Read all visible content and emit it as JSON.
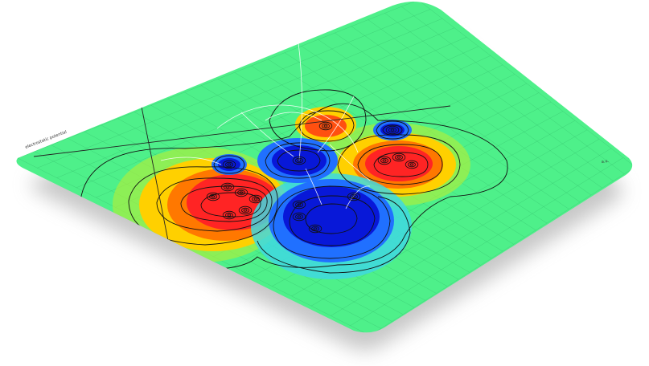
{
  "figure": {
    "side_label": "electrostatic potential",
    "corner_label": "a.u.",
    "background_color": "#ffffff",
    "card_color": "#4ef08a",
    "shadow_color": "#9a9a9a",
    "gridline_color": "#2aa860",
    "contour_color": "#111111",
    "fieldline_color": "#ffffff",
    "colormap": [
      "#0000d0",
      "#2060ff",
      "#00d8ff",
      "#4ef08a",
      "#ffe000",
      "#ff8000",
      "#ff2020"
    ],
    "positive_regions": [
      {
        "name": "left-positive-lobe",
        "center": [
          0.3,
          0.5
        ],
        "strength": 1.0,
        "nuclei": 6
      },
      {
        "name": "right-positive-lobe",
        "center": [
          0.62,
          0.34
        ],
        "strength": 0.9,
        "nuclei": 3
      },
      {
        "name": "top-positive-lobe",
        "center": [
          0.5,
          0.22
        ],
        "strength": 0.6,
        "nuclei": 1
      }
    ],
    "negative_regions": [
      {
        "name": "center-negative-lobe",
        "center": [
          0.47,
          0.55
        ],
        "strength": 1.0,
        "nuclei": 4
      },
      {
        "name": "upper-center-negative-lobe",
        "center": [
          0.43,
          0.36
        ],
        "strength": 0.7,
        "nuclei": 1
      },
      {
        "name": "left-negative-lobe",
        "center": [
          0.31,
          0.35
        ],
        "strength": 0.4,
        "nuclei": 1
      },
      {
        "name": "right-negative-lobe",
        "center": [
          0.63,
          0.22
        ],
        "strength": 0.4,
        "nuclei": 1
      }
    ]
  }
}
